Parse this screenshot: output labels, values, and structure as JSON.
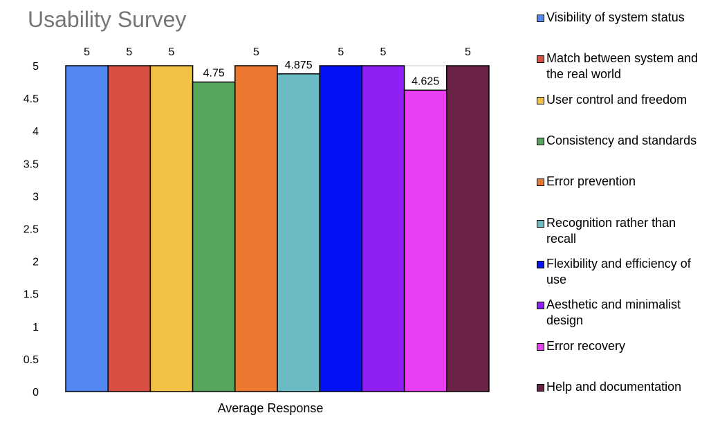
{
  "chart_data": {
    "type": "bar",
    "title": "Usability Survey",
    "categories": [
      "Average Response"
    ],
    "series": [
      {
        "name": "Visibility of system status",
        "values": [
          5
        ],
        "color": "#5487ef"
      },
      {
        "name": "Match between system and the real world",
        "values": [
          5
        ],
        "color": "#d94f42"
      },
      {
        "name": "User control and freedom",
        "values": [
          5
        ],
        "color": "#f1c244"
      },
      {
        "name": "Consistency and standards",
        "values": [
          4.75
        ],
        "color": "#57a55b"
      },
      {
        "name": "Error prevention",
        "values": [
          5
        ],
        "color": "#ec772f"
      },
      {
        "name": "Recognition rather than recall",
        "values": [
          4.875
        ],
        "color": "#6abbc4"
      },
      {
        "name": "Flexibility and efficiency of use",
        "values": [
          5
        ],
        "color": "#0411f4"
      },
      {
        "name": "Aesthetic and minimalist design",
        "values": [
          5
        ],
        "color": "#8f1ff5"
      },
      {
        "name": "Error recovery",
        "values": [
          4.625
        ],
        "color": "#e73ff1"
      },
      {
        "name": "Help and documentation",
        "values": [
          5
        ],
        "color": "#6a2346"
      }
    ],
    "data_labels": [
      "5",
      "5",
      "5",
      "4.75",
      "5",
      "4.875",
      "5",
      "5",
      "4.625",
      "5"
    ],
    "y_ticks": [
      "0",
      "0.5",
      "1",
      "1.5",
      "2",
      "2.5",
      "3",
      "3.5",
      "4",
      "4.5",
      "5"
    ],
    "ylim": [
      0,
      5
    ],
    "xlabel": "",
    "ylabel": "",
    "grid": true,
    "legend_position": "right"
  }
}
